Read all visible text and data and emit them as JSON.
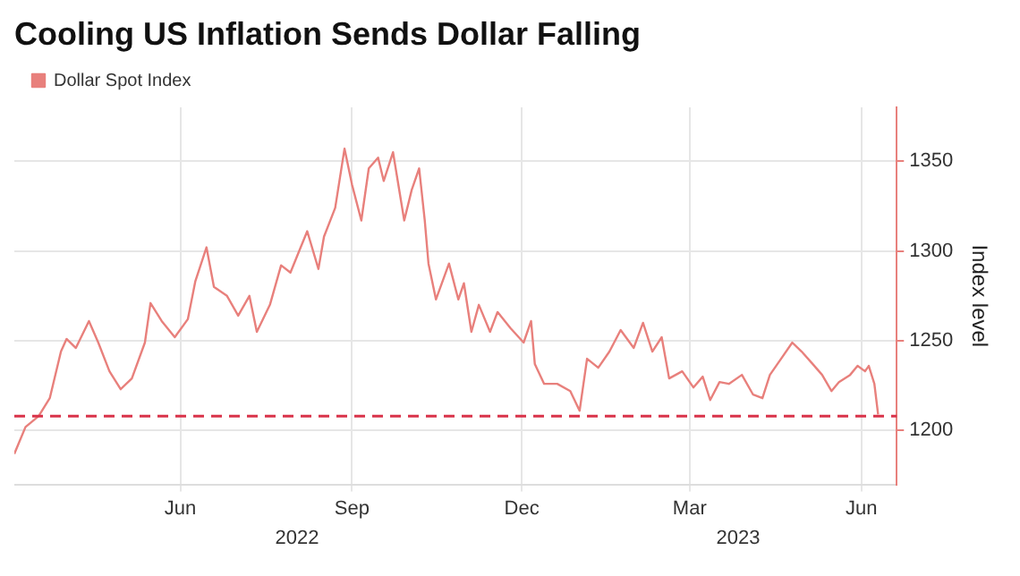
{
  "chart_data": {
    "type": "line",
    "title": "Cooling US Inflation Sends Dollar Falling",
    "ylabel": "Index level",
    "legend": "top left",
    "grid": true,
    "marker": "none",
    "line_style": "solid",
    "annotations": [
      "2022",
      "2023"
    ],
    "xlim": [
      "2022-03-04",
      "2023-06-20"
    ],
    "xticks": [
      {
        "value": "2022-06-01",
        "label": "Jun"
      },
      {
        "value": "2022-09-01",
        "label": "Sep"
      },
      {
        "value": "2022-12-01",
        "label": "Dec"
      },
      {
        "value": "2023-03-01",
        "label": "Mar"
      },
      {
        "value": "2023-06-01",
        "label": "Jun"
      }
    ],
    "ylim": [
      1170,
      1380
    ],
    "yticks": [
      1200,
      1250,
      1300,
      1350
    ],
    "ref_lines": [
      {
        "axis": "y",
        "value": 1208,
        "color": "#d9334a",
        "line_style": "dashed"
      }
    ],
    "x": [
      "2022-03-04",
      "2022-03-10",
      "2022-03-17",
      "2022-03-23",
      "2022-03-29",
      "2022-04-01",
      "2022-04-06",
      "2022-04-13",
      "2022-04-18",
      "2022-04-24",
      "2022-04-30",
      "2022-05-06",
      "2022-05-13",
      "2022-05-16",
      "2022-05-22",
      "2022-05-29",
      "2022-06-05",
      "2022-06-09",
      "2022-06-15",
      "2022-06-19",
      "2022-06-26",
      "2022-07-02",
      "2022-07-08",
      "2022-07-12",
      "2022-07-19",
      "2022-07-25",
      "2022-07-30",
      "2022-08-08",
      "2022-08-14",
      "2022-08-17",
      "2022-08-23",
      "2022-08-28",
      "2022-09-01",
      "2022-09-06",
      "2022-09-10",
      "2022-09-15",
      "2022-09-18",
      "2022-09-23",
      "2022-09-29",
      "2022-10-03",
      "2022-10-07",
      "2022-10-10",
      "2022-10-12",
      "2022-10-16",
      "2022-10-23",
      "2022-10-28",
      "2022-10-31",
      "2022-11-04",
      "2022-11-08",
      "2022-11-14",
      "2022-11-18",
      "2022-11-25",
      "2022-12-02",
      "2022-12-06",
      "2022-12-08",
      "2022-12-13",
      "2022-12-20",
      "2022-12-27",
      "2023-01-01",
      "2023-01-05",
      "2023-01-11",
      "2023-01-17",
      "2023-01-23",
      "2023-01-30",
      "2023-02-04",
      "2023-02-09",
      "2023-02-14",
      "2023-02-18",
      "2023-02-25",
      "2023-03-03",
      "2023-03-08",
      "2023-03-12",
      "2023-03-17",
      "2023-03-22",
      "2023-03-29",
      "2023-04-04",
      "2023-04-09",
      "2023-04-13",
      "2023-04-19",
      "2023-04-25",
      "2023-04-30",
      "2023-05-06",
      "2023-05-11",
      "2023-05-16",
      "2023-05-20",
      "2023-05-26",
      "2023-05-30",
      "2023-06-03",
      "2023-06-05",
      "2023-06-08",
      "2023-06-10"
    ],
    "series": [
      {
        "name": "Dollar Spot Index",
        "color": "#e8807c",
        "values": [
          1187,
          1202,
          1208,
          1218,
          1244,
          1251,
          1246,
          1261,
          1249,
          1233,
          1223,
          1229,
          1249,
          1271,
          1261,
          1252,
          1262,
          1283,
          1302,
          1280,
          1275,
          1264,
          1275,
          1255,
          1270,
          1292,
          1288,
          1311,
          1290,
          1308,
          1324,
          1357,
          1337,
          1317,
          1346,
          1352,
          1339,
          1355,
          1317,
          1334,
          1346,
          1317,
          1293,
          1273,
          1293,
          1273,
          1282,
          1255,
          1270,
          1255,
          1266,
          1257,
          1249,
          1261,
          1237,
          1226,
          1226,
          1222,
          1211,
          1240,
          1235,
          1244,
          1256,
          1246,
          1260,
          1244,
          1252,
          1229,
          1233,
          1224,
          1230,
          1217,
          1227,
          1226,
          1231,
          1220,
          1218,
          1231,
          1240,
          1249,
          1244,
          1237,
          1231,
          1222,
          1227,
          1231,
          1236,
          1233,
          1236,
          1226,
          1209
        ]
      }
    ]
  }
}
